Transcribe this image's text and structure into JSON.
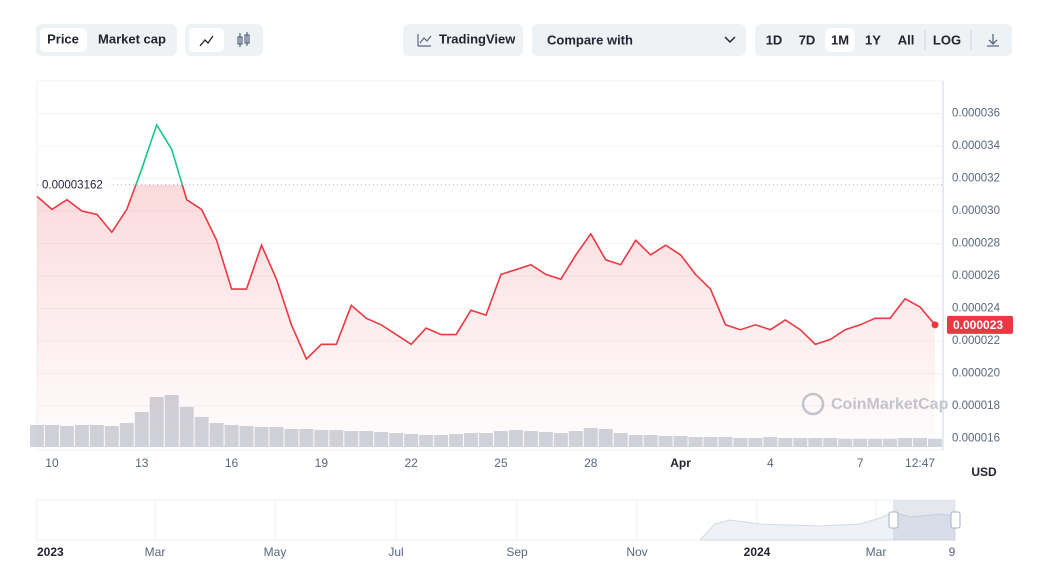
{
  "controls": {
    "tabs": [
      "Price",
      "Market cap"
    ],
    "trading_view": "TradingView",
    "compare": "Compare with",
    "ranges": [
      "1D",
      "7D",
      "1M",
      "1Y",
      "All"
    ],
    "active_range": 2,
    "log": "LOG"
  },
  "chart_data": {
    "type": "line",
    "categories": [
      null,
      "10",
      null,
      null,
      null,
      null,
      null,
      "13",
      null,
      null,
      null,
      null,
      null,
      "16",
      null,
      null,
      null,
      null,
      null,
      "19",
      null,
      null,
      null,
      null,
      null,
      "22",
      null,
      null,
      null,
      null,
      null,
      "25",
      null,
      null,
      null,
      null,
      null,
      "28",
      null,
      null,
      null,
      null,
      null,
      "Apr",
      null,
      null,
      null,
      null,
      null,
      "4",
      null,
      null,
      null,
      null,
      null,
      "7",
      null,
      null,
      null,
      "12:47",
      null
    ],
    "values": [
      3.09e-05,
      3.01e-05,
      3.07e-05,
      3e-05,
      2.98e-05,
      2.87e-05,
      3.01e-05,
      3.26e-05,
      3.53e-05,
      3.38e-05,
      3.07e-05,
      3.01e-05,
      2.82e-05,
      2.52e-05,
      2.52e-05,
      2.79e-05,
      2.58e-05,
      2.3e-05,
      2.09e-05,
      2.18e-05,
      2.18e-05,
      2.42e-05,
      2.34e-05,
      2.3e-05,
      2.24e-05,
      2.18e-05,
      2.28e-05,
      2.24e-05,
      2.24e-05,
      2.39e-05,
      2.36e-05,
      2.61e-05,
      2.64e-05,
      2.67e-05,
      2.61e-05,
      2.58e-05,
      2.73e-05,
      2.86e-05,
      2.7e-05,
      2.67e-05,
      2.82e-05,
      2.73e-05,
      2.79e-05,
      2.73e-05,
      2.61e-05,
      2.52e-05,
      2.3e-05,
      2.27e-05,
      2.3e-05,
      2.27e-05,
      2.33e-05,
      2.27e-05,
      2.18e-05,
      2.21e-05,
      2.27e-05,
      2.3e-05,
      2.34e-05,
      2.34e-05,
      2.46e-05,
      2.41e-05,
      2.3e-05
    ],
    "color_above": "#16c784",
    "color_below": "#ea3943",
    "reference_value": 3.162e-05,
    "ylim": [
      1.53e-05,
      3.8e-05
    ],
    "yticks": [
      1.6e-05,
      1.8e-05,
      {
        "value": 2e-05,
        "label": "0.000020"
      },
      2.2e-05,
      2.4e-05,
      2.6e-05,
      2.8e-05,
      {
        "value": 3e-05,
        "label": "0.000030"
      },
      3.2e-05,
      3.4e-05,
      3.6e-05
    ],
    "grid": true,
    "currency": "USD",
    "watermark": "CoinMarketCap",
    "volume": [
      22,
      22,
      21,
      22,
      22,
      21,
      24,
      35,
      50,
      52,
      40,
      30,
      24,
      22,
      21,
      20,
      20,
      18,
      18,
      17,
      17,
      16,
      16,
      15,
      14,
      13,
      12,
      12,
      13,
      14,
      14,
      16,
      17,
      16,
      15,
      14,
      16,
      19,
      18,
      14,
      12,
      12,
      11,
      11,
      10,
      10,
      10,
      9,
      9,
      10,
      9,
      9,
      9,
      9,
      8,
      8,
      8,
      8,
      9,
      9,
      8
    ],
    "volume_lim": [
      0,
      100
    ],
    "volume_color": "#cfd3dc"
  },
  "navigator": {
    "labels": [
      "2023",
      "Mar",
      "May",
      "Jul",
      "Sep",
      "Nov",
      "2024",
      "Mar",
      "9"
    ]
  }
}
